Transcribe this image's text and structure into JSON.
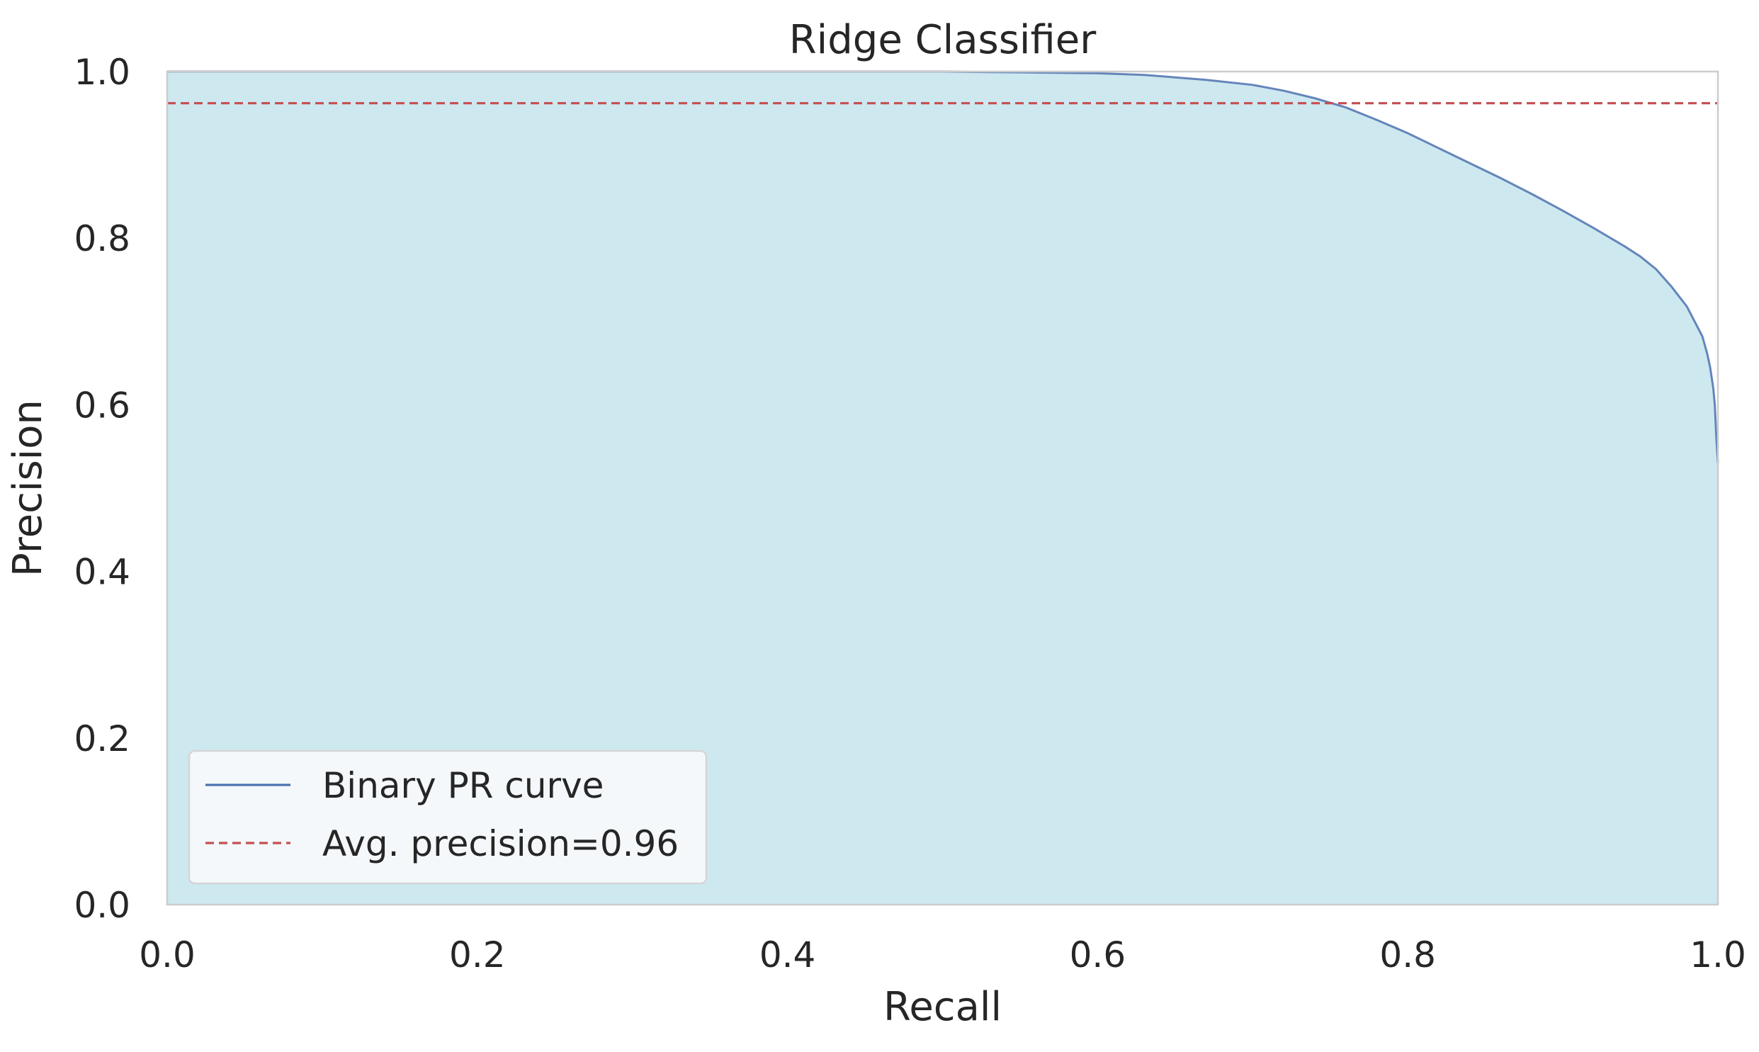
{
  "chart_data": {
    "type": "area",
    "title": "Ridge Classifier",
    "xlabel": "Recall",
    "ylabel": "Precision",
    "xlim": [
      0.0,
      1.0
    ],
    "ylim": [
      0.0,
      1.0
    ],
    "xticks": [
      "0.0",
      "0.2",
      "0.4",
      "0.6",
      "0.8",
      "1.0"
    ],
    "yticks": [
      "0.0",
      "0.2",
      "0.4",
      "0.6",
      "0.8",
      "1.0"
    ],
    "grid": false,
    "legend": {
      "placement": "lower-left",
      "entries": [
        "Binary PR curve",
        "Avg. precision=0.96"
      ]
    },
    "series": [
      {
        "name": "Binary PR curve",
        "color": "#4c72b0",
        "fill_color": "#add8e6",
        "x": [
          0.0,
          0.1,
          0.2,
          0.3,
          0.4,
          0.5,
          0.55,
          0.6,
          0.63,
          0.65,
          0.67,
          0.7,
          0.72,
          0.74,
          0.76,
          0.78,
          0.8,
          0.82,
          0.84,
          0.86,
          0.88,
          0.9,
          0.92,
          0.94,
          0.95,
          0.96,
          0.97,
          0.975,
          0.98,
          0.985,
          0.99,
          0.993,
          0.995,
          0.997,
          0.998,
          0.999,
          1.0
        ],
        "y": [
          1.0,
          1.0,
          1.0,
          1.0,
          1.0,
          1.0,
          0.999,
          0.998,
          0.996,
          0.993,
          0.99,
          0.984,
          0.977,
          0.968,
          0.957,
          0.942,
          0.926,
          0.908,
          0.89,
          0.872,
          0.853,
          0.833,
          0.812,
          0.79,
          0.778,
          0.763,
          0.742,
          0.73,
          0.718,
          0.7,
          0.682,
          0.662,
          0.645,
          0.62,
          0.6,
          0.56,
          0.53
        ]
      },
      {
        "name": "Avg. precision=0.96",
        "color": "#c44e52",
        "style": "dashed",
        "y_constant": 0.962
      }
    ]
  }
}
